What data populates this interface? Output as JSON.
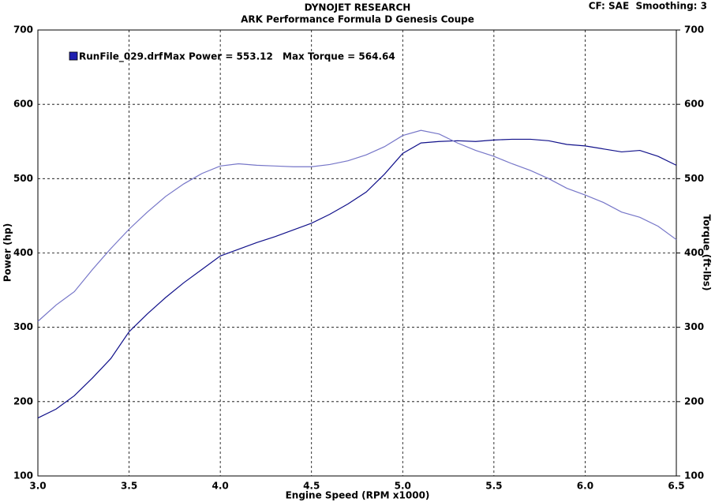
{
  "chart_data": {
    "type": "line",
    "title": "DYNOJET RESEARCH",
    "subtitle": "ARK Performance Formula D Genesis Coupe",
    "settings_label": "CF: SAE  Smoothing: 3",
    "legend": {
      "label": "RunFile_029.drf",
      "max_power": "Max Power = 553.12",
      "max_torque": "Max Torque = 564.64"
    },
    "x_label": "Engine Speed (RPM x1000)",
    "y_label": "Power (hp)",
    "y2_label": "Torque (ft-lbs)",
    "x": [
      3.0,
      3.1,
      3.2,
      3.3,
      3.4,
      3.5,
      3.6,
      3.7,
      3.8,
      3.9,
      4.0,
      4.1,
      4.2,
      4.3,
      4.4,
      4.5,
      4.6,
      4.7,
      4.8,
      4.9,
      5.0,
      5.1,
      5.2,
      5.3,
      5.4,
      5.5,
      5.6,
      5.7,
      5.8,
      5.9,
      6.0,
      6.1,
      6.2,
      6.3,
      6.4,
      6.5
    ],
    "series": [
      {
        "color": "#10108a",
        "values": [
          178,
          190,
          208,
          232,
          258,
          294,
          318,
          340,
          360,
          378,
          396,
          405,
          414,
          422,
          431,
          440,
          452,
          466,
          482,
          506,
          534,
          548,
          550,
          551,
          550,
          552,
          553,
          553,
          551,
          546,
          544,
          540,
          536,
          538,
          530,
          518
        ]
      },
      {
        "color": "#7676c8",
        "axis": "y2",
        "values": [
          308,
          330,
          348,
          378,
          406,
          432,
          455,
          476,
          493,
          507,
          517,
          520,
          518,
          517,
          516,
          516,
          519,
          524,
          532,
          543,
          558,
          565,
          560,
          548,
          538,
          530,
          520,
          511,
          500,
          487,
          478,
          468,
          455,
          448,
          436,
          418
        ]
      }
    ],
    "xlim": [
      3.0,
      6.5
    ],
    "xticks": [
      {
        "value": 3,
        "label": "3.0"
      },
      3.5,
      {
        "value": 4,
        "label": "4.0"
      },
      4.5,
      {
        "value": 5,
        "label": "5.0"
      },
      5.5,
      {
        "value": 6,
        "label": "6.0"
      },
      6.5
    ],
    "ylim": [
      100,
      700
    ],
    "yticks": [
      100,
      200,
      300,
      400,
      500,
      600,
      700
    ],
    "y2lim": [
      100,
      700
    ],
    "y2ticks": [
      100,
      200,
      300,
      400,
      500,
      600,
      700
    ],
    "grid": true
  }
}
